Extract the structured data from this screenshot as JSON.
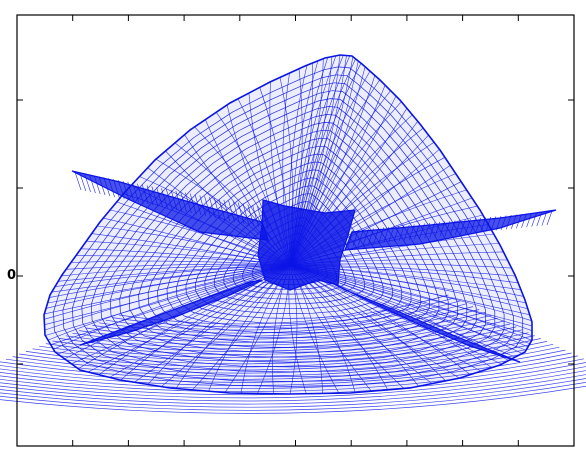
{
  "figure": {
    "y_tick_label": "0",
    "mesh_color": "#0a14e6",
    "frame_color": "#000000",
    "background_color": "#ffffff",
    "x_tick_count": 9,
    "y_tick_count": 4
  }
}
